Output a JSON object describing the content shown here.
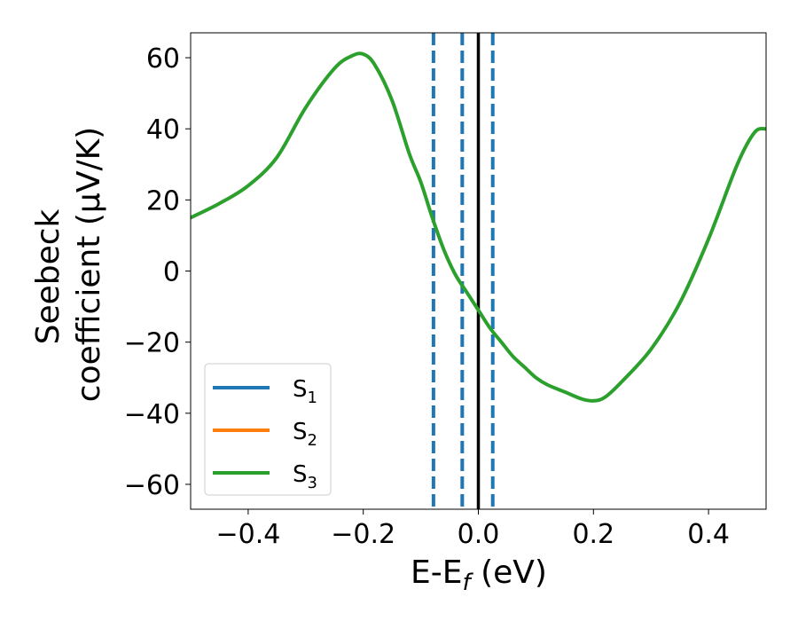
{
  "chart_data": {
    "type": "line",
    "title": "",
    "xlabel": {
      "main": "E-E",
      "sub": "f",
      "suffix": " (eV)"
    },
    "ylabel": {
      "line1": "Seebeck",
      "line2": "coefficient  (μV/K)"
    },
    "xlim": [
      -0.5,
      0.5
    ],
    "ylim": [
      -67,
      67
    ],
    "xticks": [
      -0.4,
      -0.2,
      0.0,
      0.2,
      0.4
    ],
    "xtick_labels": [
      "−0.4",
      "−0.2",
      "0.0",
      "0.2",
      "0.4"
    ],
    "yticks": [
      -60,
      -40,
      -20,
      0,
      20,
      40,
      60
    ],
    "ytick_labels": [
      "−60",
      "−40",
      "−20",
      "0",
      "20",
      "40",
      "60"
    ],
    "grid": false,
    "legend_position": "bottom-left",
    "series": [
      {
        "name": "S",
        "sub": "1",
        "color": "#1f77b4",
        "x": [],
        "y": []
      },
      {
        "name": "S",
        "sub": "2",
        "color": "#ff7f0e",
        "x": [],
        "y": []
      },
      {
        "name": "S",
        "sub": "3",
        "color": "#2ca02c",
        "x": [
          -0.5,
          -0.45,
          -0.4,
          -0.35,
          -0.3,
          -0.25,
          -0.22,
          -0.2,
          -0.18,
          -0.15,
          -0.12,
          -0.1,
          -0.08,
          -0.06,
          -0.04,
          -0.02,
          0.0,
          0.02,
          0.04,
          0.06,
          0.08,
          0.1,
          0.12,
          0.15,
          0.18,
          0.2,
          0.22,
          0.25,
          0.3,
          0.35,
          0.4,
          0.45,
          0.48,
          0.5
        ],
        "y": [
          15,
          19,
          24,
          32,
          46,
          57,
          60.5,
          61,
          58,
          48,
          33,
          25,
          15,
          6,
          -1,
          -6,
          -11,
          -16,
          -20,
          -24,
          -27,
          -30,
          -32,
          -34,
          -36,
          -36.5,
          -35.5,
          -31,
          -22,
          -9,
          9,
          30,
          39,
          40
        ]
      }
    ],
    "reference_lines": [
      {
        "x": -0.078,
        "style": "dashed",
        "color": "#1f77b4"
      },
      {
        "x": -0.028,
        "style": "dashed",
        "color": "#1f77b4"
      },
      {
        "x": 0.0,
        "style": "solid",
        "color": "#000000"
      },
      {
        "x": 0.025,
        "style": "dashed",
        "color": "#1f77b4"
      }
    ]
  }
}
